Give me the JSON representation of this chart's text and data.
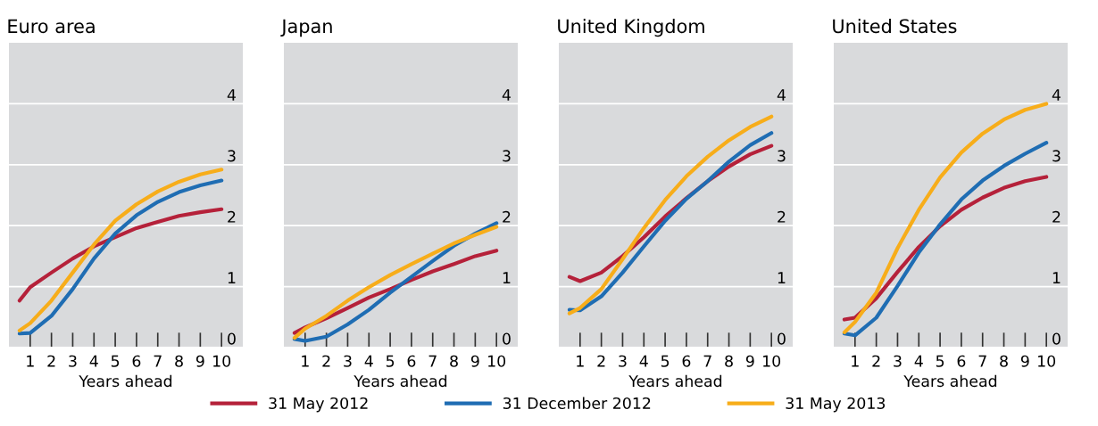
{
  "chart_data": [
    {
      "type": "line",
      "title": "Euro area",
      "xlabel": "Years ahead",
      "x": [
        0.5,
        1,
        2,
        3,
        4,
        5,
        6,
        7,
        8,
        9,
        10
      ],
      "xlim": [
        0,
        11
      ],
      "xticks": [
        1,
        2,
        3,
        4,
        5,
        6,
        7,
        8,
        9,
        10
      ],
      "ylim": [
        0,
        5
      ],
      "yticks": [
        0,
        1,
        2,
        3,
        4
      ],
      "grid": true,
      "legend": "bottom",
      "series": [
        {
          "name": "31 May 2012",
          "color": "#b5213a",
          "values": [
            0.77,
            0.99,
            1.23,
            1.46,
            1.66,
            1.81,
            1.96,
            2.06,
            2.16,
            2.22,
            2.27
          ]
        },
        {
          "name": "31 December 2012",
          "color": "#1f6db3",
          "values": [
            0.23,
            0.24,
            0.52,
            0.96,
            1.46,
            1.87,
            2.17,
            2.39,
            2.55,
            2.66,
            2.74
          ]
        },
        {
          "name": "31 May 2013",
          "color": "#f7ad1a",
          "values": [
            0.28,
            0.4,
            0.77,
            1.23,
            1.69,
            2.08,
            2.35,
            2.56,
            2.72,
            2.84,
            2.92
          ]
        }
      ]
    },
    {
      "type": "line",
      "title": "Japan",
      "xlabel": "Years ahead",
      "x": [
        0.5,
        1,
        2,
        3,
        4,
        5,
        6,
        7,
        8,
        9,
        10
      ],
      "xlim": [
        0,
        11
      ],
      "xticks": [
        1,
        2,
        3,
        4,
        5,
        6,
        7,
        8,
        9,
        10
      ],
      "ylim": [
        0,
        5
      ],
      "yticks": [
        0,
        1,
        2,
        3,
        4
      ],
      "grid": true,
      "legend": "bottom",
      "series": [
        {
          "name": "31 May 2012",
          "color": "#b5213a",
          "values": [
            0.24,
            0.33,
            0.48,
            0.65,
            0.82,
            0.96,
            1.11,
            1.25,
            1.37,
            1.5,
            1.59
          ]
        },
        {
          "name": "31 December 2012",
          "color": "#1f6db3",
          "values": [
            0.14,
            0.11,
            0.18,
            0.38,
            0.62,
            0.9,
            1.16,
            1.42,
            1.67,
            1.87,
            2.04
          ]
        },
        {
          "name": "31 May 2013",
          "color": "#f7ad1a",
          "values": [
            0.16,
            0.31,
            0.52,
            0.77,
            0.99,
            1.19,
            1.37,
            1.54,
            1.71,
            1.85,
            1.98
          ]
        }
      ]
    },
    {
      "type": "line",
      "title": "United Kingdom",
      "xlabel": "Years ahead",
      "x": [
        0.5,
        1,
        2,
        3,
        4,
        5,
        6,
        7,
        8,
        9,
        10
      ],
      "xlim": [
        0,
        11
      ],
      "xticks": [
        1,
        2,
        3,
        4,
        5,
        6,
        7,
        8,
        9,
        10
      ],
      "ylim": [
        0,
        5
      ],
      "yticks": [
        0,
        1,
        2,
        3,
        4
      ],
      "grid": true,
      "legend": "bottom",
      "series": [
        {
          "name": "31 May 2012",
          "color": "#b5213a",
          "values": [
            1.16,
            1.09,
            1.23,
            1.5,
            1.81,
            2.15,
            2.45,
            2.73,
            2.97,
            3.17,
            3.31
          ]
        },
        {
          "name": "31 December 2012",
          "color": "#1f6db3",
          "values": [
            0.62,
            0.61,
            0.84,
            1.23,
            1.66,
            2.08,
            2.44,
            2.73,
            3.05,
            3.32,
            3.52
          ]
        },
        {
          "name": "31 May 2013",
          "color": "#f7ad1a",
          "values": [
            0.56,
            0.65,
            0.96,
            1.45,
            1.96,
            2.42,
            2.81,
            3.13,
            3.4,
            3.62,
            3.79
          ]
        }
      ]
    },
    {
      "type": "line",
      "title": "United States",
      "xlabel": "Years ahead",
      "x": [
        0.5,
        1,
        2,
        3,
        4,
        5,
        6,
        7,
        8,
        9,
        10
      ],
      "xlim": [
        0,
        11
      ],
      "xticks": [
        1,
        2,
        3,
        4,
        5,
        6,
        7,
        8,
        9,
        10
      ],
      "ylim": [
        0,
        5
      ],
      "yticks": [
        0,
        1,
        2,
        3,
        4
      ],
      "grid": true,
      "legend": "bottom",
      "series": [
        {
          "name": "31 May 2012",
          "color": "#b5213a",
          "values": [
            0.46,
            0.49,
            0.81,
            1.24,
            1.65,
            1.99,
            2.26,
            2.46,
            2.62,
            2.73,
            2.8
          ]
        },
        {
          "name": "31 December 2012",
          "color": "#1f6db3",
          "values": [
            0.23,
            0.2,
            0.49,
            1.01,
            1.56,
            2.02,
            2.43,
            2.74,
            2.98,
            3.18,
            3.36
          ]
        },
        {
          "name": "31 May 2013",
          "color": "#f7ad1a",
          "values": [
            0.25,
            0.42,
            0.9,
            1.63,
            2.26,
            2.79,
            3.2,
            3.51,
            3.74,
            3.9,
            4.0
          ]
        }
      ]
    }
  ]
}
